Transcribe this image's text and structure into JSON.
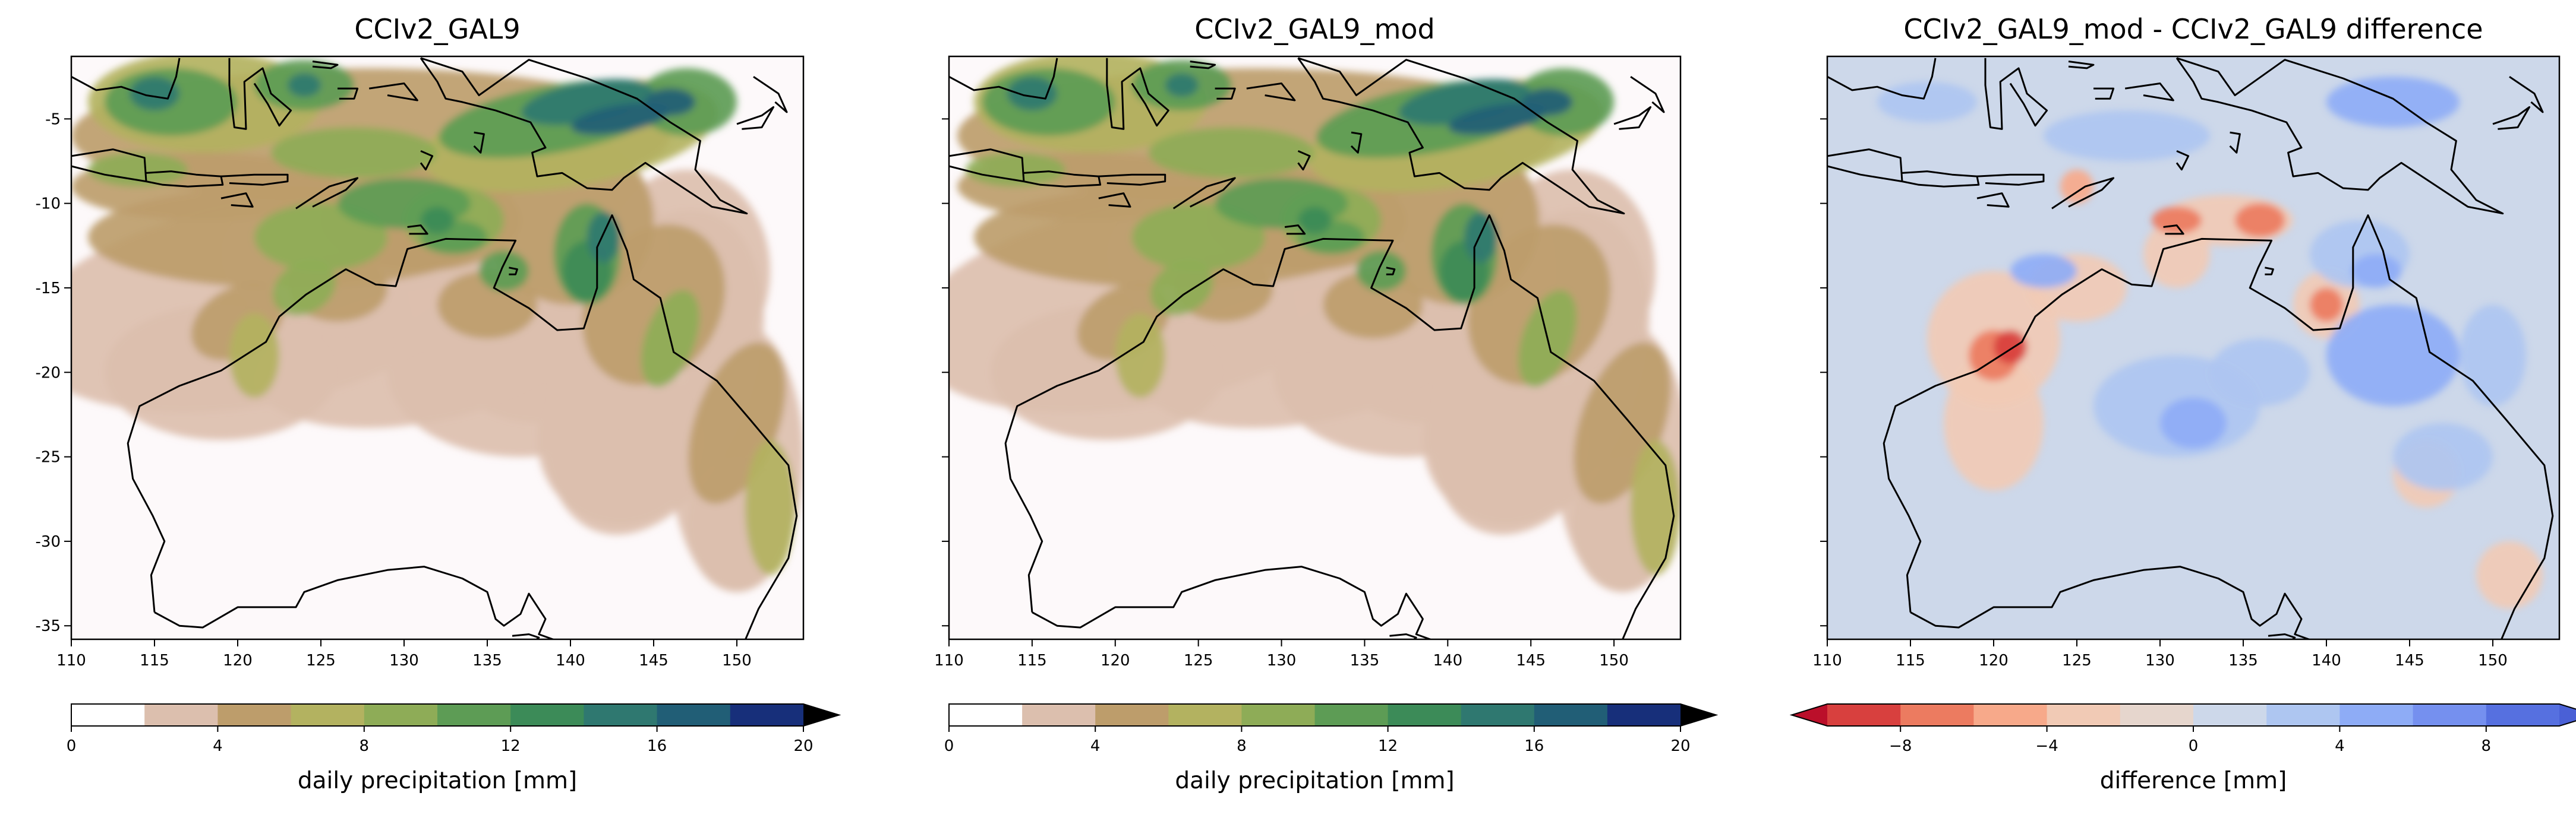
{
  "figure": {
    "type": "heatmap",
    "panels": [
      {
        "title": "CCIv2_GAL9",
        "colorbar": {
          "label": "daily precipitation [mm]",
          "ticks": [
            0,
            4,
            8,
            12,
            16,
            20
          ],
          "levels": [
            0,
            2,
            4,
            6,
            8,
            10,
            12,
            14,
            16,
            18,
            20
          ],
          "colors": [
            "#ffffff",
            "#dcbfae",
            "#bd9d6b",
            "#b3b260",
            "#8eac57",
            "#5d9c55",
            "#3c8b58",
            "#2f7870",
            "#215e76",
            "#172f7a"
          ],
          "extend": "max",
          "over_color": "#000000"
        }
      },
      {
        "title": "CCIv2_GAL9_mod",
        "colorbar": {
          "label": "daily precipitation [mm]",
          "ticks": [
            0,
            4,
            8,
            12,
            16,
            20
          ],
          "levels": [
            0,
            2,
            4,
            6,
            8,
            10,
            12,
            14,
            16,
            18,
            20
          ],
          "colors": [
            "#ffffff",
            "#dcbfae",
            "#bd9d6b",
            "#b3b260",
            "#8eac57",
            "#5d9c55",
            "#3c8b58",
            "#2f7870",
            "#215e76",
            "#172f7a"
          ],
          "extend": "max",
          "over_color": "#000000"
        }
      },
      {
        "title": "CCIv2_GAL9_mod - CCIv2_GAL9 difference",
        "colorbar": {
          "label": "difference [mm]",
          "ticks": [
            -8,
            -4,
            0,
            4,
            8
          ],
          "tick_labels": [
            "−8",
            "−4",
            "0",
            "4",
            "8"
          ],
          "levels": [
            -10,
            -8,
            -6,
            -4,
            -2,
            0,
            2,
            4,
            6,
            8,
            10
          ],
          "colors": [
            "#d8403e",
            "#ec7b60",
            "#f7a98a",
            "#f1cab5",
            "#e6d6cd",
            "#cdd8ea",
            "#aec6f1",
            "#8eacf6",
            "#7590ef",
            "#5670e0"
          ],
          "extend": "both",
          "under_color": "#bb0f2a",
          "over_color": "#4a60d6"
        }
      }
    ],
    "x_axis": {
      "ticks": [
        110,
        115,
        120,
        125,
        130,
        135,
        140,
        145,
        150
      ],
      "lim": [
        110,
        154
      ]
    },
    "y_axis": {
      "ticks": [
        -5,
        -10,
        -15,
        -20,
        -25,
        -30,
        -35
      ],
      "lim": [
        -35.8,
        -1.3
      ]
    }
  }
}
